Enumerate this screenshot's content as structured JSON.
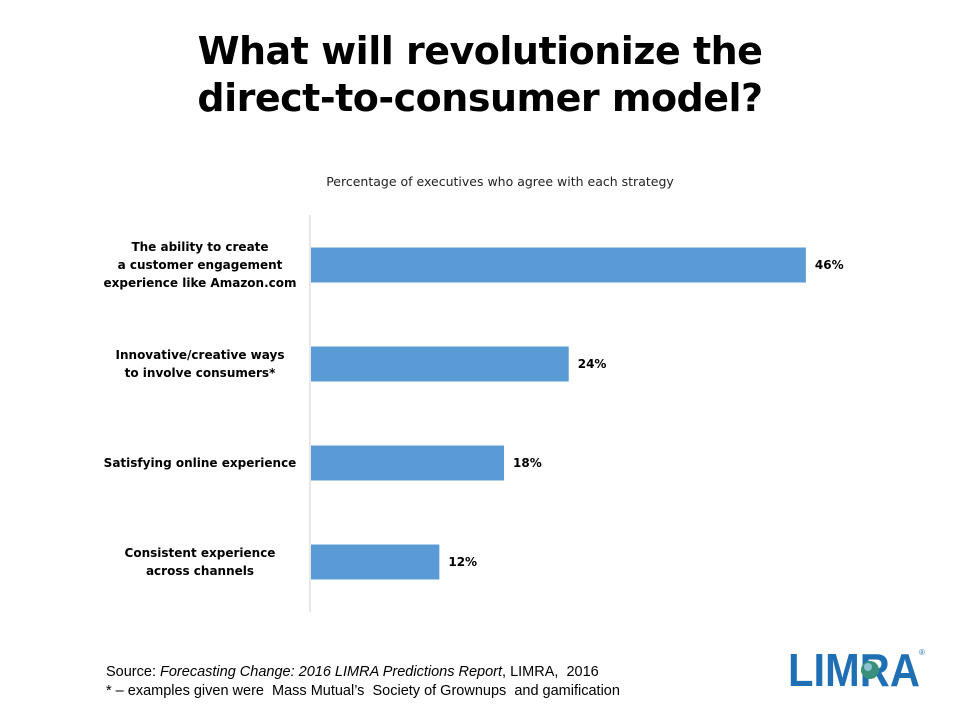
{
  "title_lines": [
    "What will revolutionize the",
    "direct-to-consumer model?"
  ],
  "subtitle": "Percentage of executives who agree with each strategy",
  "chart_data": {
    "type": "bar",
    "orientation": "horizontal",
    "title": "What will revolutionize the direct-to-consumer model?",
    "subtitle": "Percentage of executives who agree with each strategy",
    "categories": [
      [
        "The ability to create",
        "a customer engagement",
        "experience like Amazon.com"
      ],
      [
        "Innovative/creative ways",
        "to involve consumers*"
      ],
      [
        "Satisfying online experience"
      ],
      [
        "Consistent experience",
        "across channels"
      ]
    ],
    "values": [
      46,
      24,
      18,
      12
    ],
    "value_labels": [
      "46%",
      "24%",
      "18%",
      "12%"
    ],
    "unit": "%",
    "xlim": [
      0,
      60
    ],
    "grid": false,
    "legend": "none",
    "bar_color": "#5b9bd5"
  },
  "footer": {
    "source_prefix": "Source: ",
    "source_title": "Forecasting Change: 2016 LIMRA Predictions Report",
    "source_suffix": ", LIMRA,  2016",
    "note": "* – examples given were  Mass Mutual’s  Society of Grownups  and gamification"
  },
  "logo": {
    "text": "LIMRA",
    "color": "#1f6fb5",
    "registered": "®"
  }
}
